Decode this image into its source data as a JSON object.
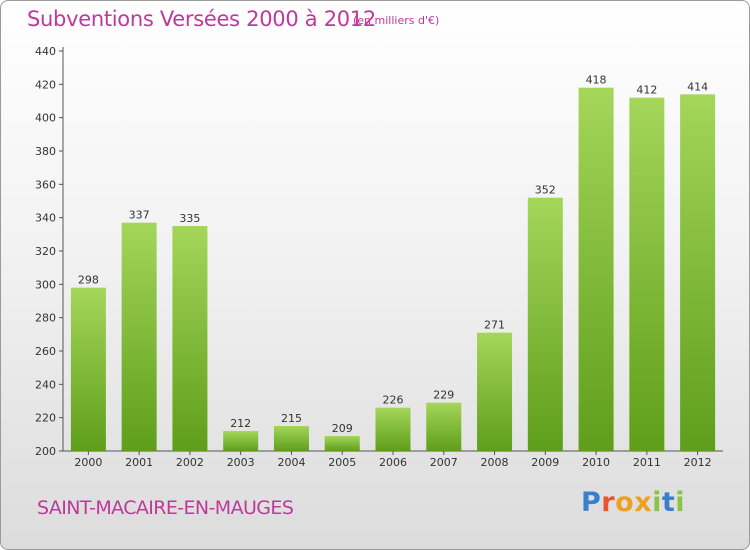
{
  "title": "Subventions Versées 2000 à 2012",
  "subtitle": "(en milliers d'€)",
  "commune": "SAINT-MACAIRE-EN-MAUGES",
  "logo": {
    "text": "Proxiti",
    "colors": [
      "#3a7fcc",
      "#e8552f",
      "#f0a020",
      "#f0a020",
      "#8bc34a",
      "#3a7fcc",
      "#8bc34a"
    ]
  },
  "colors": {
    "bar_top": "#a4d65a",
    "bar_bottom": "#5e9e1a",
    "title": "#c0389a"
  },
  "chart_data": {
    "type": "bar",
    "title": "Subventions Versées 2000 à 2012",
    "subtitle": "(en milliers d'€)",
    "categories": [
      "2000",
      "2001",
      "2002",
      "2003",
      "2004",
      "2005",
      "2006",
      "2007",
      "2008",
      "2009",
      "2010",
      "2011",
      "2012"
    ],
    "values": [
      298,
      337,
      335,
      212,
      215,
      209,
      226,
      229,
      271,
      352,
      418,
      412,
      414
    ],
    "ylim": [
      200,
      440
    ],
    "yticks": [
      200,
      220,
      240,
      260,
      280,
      300,
      320,
      340,
      360,
      380,
      400,
      420,
      440
    ],
    "grid": false,
    "legend": "none"
  }
}
